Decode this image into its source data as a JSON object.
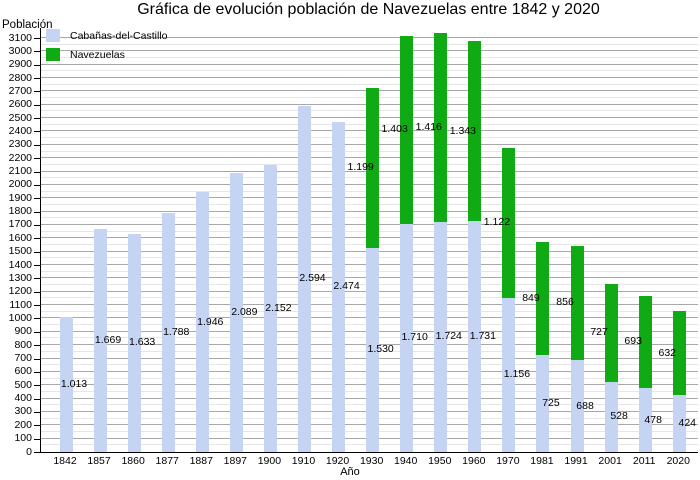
{
  "title": "Gráfica de evolución población de Navezuelas entre 1842 y 2020",
  "y_axis_title": "Población",
  "x_axis_title": "Año",
  "legend": [
    {
      "label": "Cabañas-del-Castillo",
      "color": "#c6d4f4"
    },
    {
      "label": "Navezuelas",
      "color": "#0faa14"
    }
  ],
  "chart_data": {
    "type": "bar",
    "stacked": true,
    "title": "Gráfica de evolución población de Navezuelas entre 1842 y 2020",
    "xlabel": "Año",
    "ylabel": "Población",
    "categories": [
      "1842",
      "1857",
      "1860",
      "1877",
      "1887",
      "1897",
      "1900",
      "1910",
      "1920",
      "1930",
      "1940",
      "1950",
      "1960",
      "1970",
      "1981",
      "1991",
      "2001",
      "2011",
      "2020"
    ],
    "series": [
      {
        "name": "Cabañas-del-Castillo",
        "color": "#c6d4f4",
        "values": [
          1013,
          1669,
          1633,
          1788,
          1946,
          2089,
          2152,
          2594,
          2474,
          1530,
          1710,
          1724,
          1731,
          1156,
          725,
          688,
          528,
          478,
          424
        ],
        "labels": [
          "1.013",
          "1.669",
          "1.633",
          "1.788",
          "1.946",
          "2.089",
          "2.152",
          "2.594",
          "2.474",
          "1.530",
          "1.710",
          "1.724",
          "1.731",
          "1.156",
          "725",
          "688",
          "528",
          "478",
          "424"
        ]
      },
      {
        "name": "Navezuelas",
        "color": "#0faa14",
        "values": [
          0,
          0,
          0,
          0,
          0,
          0,
          0,
          0,
          0,
          1199,
          1403,
          1416,
          1343,
          1122,
          849,
          856,
          727,
          693,
          632
        ],
        "labels": [
          "",
          "",
          "",
          "",
          "",
          "",
          "",
          "",
          "",
          "1.199",
          "1.403",
          "1.416",
          "1.343",
          "1.122",
          "849",
          "856",
          "727",
          "693",
          "632"
        ]
      }
    ],
    "ylim": [
      0,
      3100
    ],
    "ytick_step": 100,
    "minor_grid_step": 50,
    "grid": true,
    "legend_position": "top-left",
    "colors": {
      "grid_major": "#a8a8a8",
      "grid_minor": "#e6e6e6",
      "axis": "#000000",
      "text": "#000000"
    }
  }
}
